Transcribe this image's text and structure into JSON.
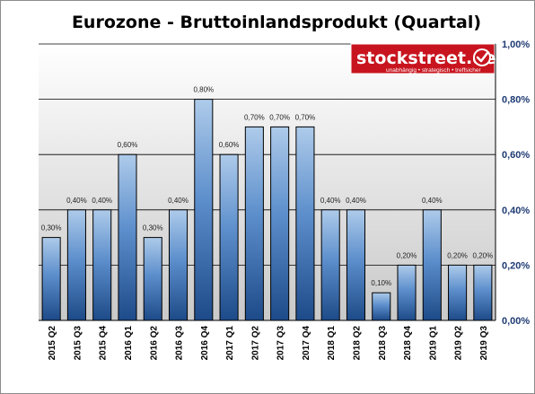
{
  "chart_data": {
    "type": "bar",
    "title": "Eurozone - Bruttoinlandsprodukt (Quartal)",
    "categories": [
      "2015 Q2",
      "2015 Q3",
      "2015 Q4",
      "2016 Q1",
      "2016 Q2",
      "2016 Q3",
      "2016 Q4",
      "2017 Q1",
      "2017 Q2",
      "2017 Q3",
      "2017 Q4",
      "2018 Q1",
      "2018 Q2",
      "2018 Q3",
      "2018 Q4",
      "2019 Q1",
      "2019 Q2",
      "2019 Q3"
    ],
    "values": [
      0.3,
      0.4,
      0.4,
      0.6,
      0.3,
      0.4,
      0.8,
      0.6,
      0.7,
      0.7,
      0.7,
      0.4,
      0.4,
      0.1,
      0.2,
      0.4,
      0.2,
      0.2
    ],
    "data_labels": [
      "0,30%",
      "0,40%",
      "0,40%",
      "0,60%",
      "0,30%",
      "0,40%",
      "0,80%",
      "0,60%",
      "0,70%",
      "0,70%",
      "0,70%",
      "0,40%",
      "0,40%",
      "0,10%",
      "0,20%",
      "0,40%",
      "0,20%",
      "0,20%"
    ],
    "ylim": [
      0,
      1.0
    ],
    "yticks": [
      0,
      0.2,
      0.4,
      0.6,
      0.8,
      1.0
    ],
    "ytick_labels": [
      "0,00%",
      "0,20%",
      "0,40%",
      "0,60%",
      "0,80%",
      "1,00%"
    ],
    "y_axis_side": "right",
    "grid": true,
    "legend": "none",
    "colors": {
      "bar_top": "#a9c8ea",
      "bar_bottom": "#1f4f8f",
      "bar_border": "#000000",
      "plot_bg_top": "#ffffff",
      "plot_bg_bottom": "#c8c8c8",
      "ytick_color": "#1f3b73"
    }
  },
  "logo": {
    "text": "stockstreet.de",
    "tagline": "unabhängig • strategisch • treffsicher",
    "bg_color": "#c8141e",
    "icon": "check-badge-icon"
  }
}
